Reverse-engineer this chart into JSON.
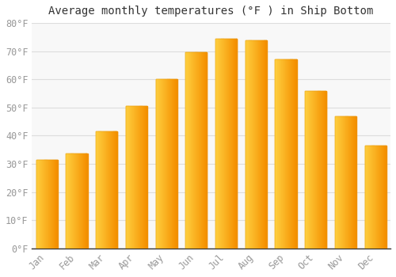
{
  "months": [
    "Jan",
    "Feb",
    "Mar",
    "Apr",
    "May",
    "Jun",
    "Jul",
    "Aug",
    "Sep",
    "Oct",
    "Nov",
    "Dec"
  ],
  "values": [
    31.5,
    33.8,
    41.5,
    50.5,
    60.0,
    69.5,
    74.5,
    73.8,
    67.0,
    56.0,
    47.0,
    36.5
  ],
  "bar_color_left": "#FFD040",
  "bar_color_right": "#F5A000",
  "bar_color_mid": "#FFBF20",
  "title": "Average monthly temperatures (°F ) in Ship Bottom",
  "ylim": [
    0,
    80
  ],
  "ytick_step": 10,
  "background_color": "#ffffff",
  "plot_bg_color": "#f8f8f8",
  "grid_color": "#dddddd",
  "title_fontsize": 10,
  "tick_fontsize": 8.5,
  "font_family": "monospace",
  "tick_color": "#999999",
  "axis_color": "#333333"
}
